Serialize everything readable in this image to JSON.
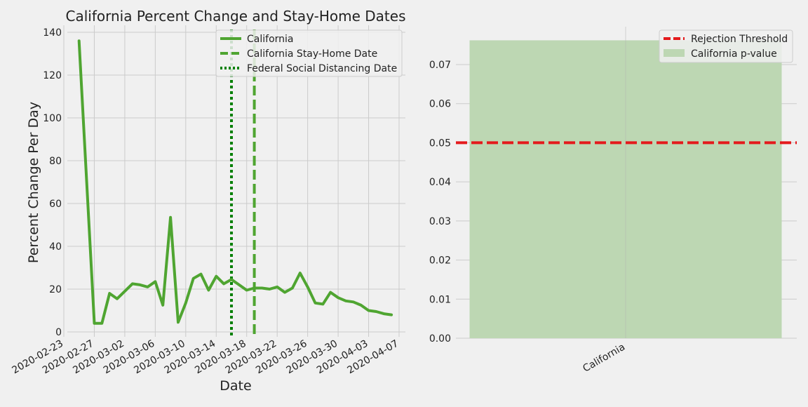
{
  "chart_data": [
    {
      "type": "line",
      "title": "California Percent Change and Stay-Home Dates",
      "xlabel": "Date",
      "ylabel": "Percent Change Per Day",
      "ylim": [
        -5,
        142
      ],
      "grid": true,
      "legend_position": "top-right",
      "x_tick_labels": [
        "2020-02-23",
        "2020-02-27",
        "2020-03-02",
        "2020-03-06",
        "2020-03-10",
        "2020-03-14",
        "2020-03-18",
        "2020-03-22",
        "2020-03-26",
        "2020-03-30",
        "2020-04-03",
        "2020-04-07"
      ],
      "y_ticks": [
        0,
        20,
        40,
        60,
        80,
        100,
        120,
        140
      ],
      "series": [
        {
          "name": "California",
          "color": "#4fa531",
          "x": [
            "2020-02-25",
            "2020-02-26",
            "2020-02-27",
            "2020-02-28",
            "2020-02-29",
            "2020-03-01",
            "2020-03-02",
            "2020-03-03",
            "2020-03-04",
            "2020-03-05",
            "2020-03-06",
            "2020-03-07",
            "2020-03-08",
            "2020-03-09",
            "2020-03-10",
            "2020-03-11",
            "2020-03-12",
            "2020-03-13",
            "2020-03-14",
            "2020-03-15",
            "2020-03-16",
            "2020-03-17",
            "2020-03-18",
            "2020-03-19",
            "2020-03-20",
            "2020-03-21",
            "2020-03-22",
            "2020-03-23",
            "2020-03-24",
            "2020-03-25",
            "2020-03-26",
            "2020-03-27",
            "2020-03-28",
            "2020-03-29",
            "2020-03-30",
            "2020-03-31",
            "2020-04-01",
            "2020-04-02",
            "2020-04-03",
            "2020-04-04",
            "2020-04-05",
            "2020-04-06"
          ],
          "values": [
            136,
            70,
            4,
            4,
            18,
            15.5,
            19,
            22.5,
            22,
            21,
            23.5,
            12.5,
            53.5,
            4.5,
            13.5,
            25,
            27,
            19.5,
            26,
            22.5,
            24.5,
            22,
            19.5,
            20.5,
            20.5,
            20,
            21,
            18.5,
            20.5,
            27.5,
            21,
            13.5,
            13,
            18.5,
            16,
            14.5,
            14,
            12.5,
            10,
            9.5,
            8.5,
            8
          ]
        }
      ],
      "vertical_lines": [
        {
          "name": "California Stay-Home Date",
          "date": "2020-03-19",
          "style": "dashed",
          "color": "#4fa531"
        },
        {
          "name": "Federal Social Distancing Date",
          "date": "2020-03-16",
          "style": "dotted",
          "color": "#008000"
        }
      ]
    },
    {
      "type": "bar",
      "categories": [
        "California"
      ],
      "series": [
        {
          "name": "California p-value",
          "values": [
            0.0762
          ],
          "color": "#bdd7b3"
        }
      ],
      "reference_lines": [
        {
          "name": "Rejection Threshold",
          "value": 0.05,
          "style": "dashed",
          "color": "#e41a1c"
        }
      ],
      "ylim": [
        0,
        0.08
      ],
      "y_ticks": [
        "0.00",
        "0.01",
        "0.02",
        "0.03",
        "0.04",
        "0.05",
        "0.06",
        "0.07"
      ],
      "grid": true,
      "legend_position": "top-right"
    }
  ],
  "legend_left": [
    "California",
    "California Stay-Home Date",
    "Federal Social Distancing Date"
  ],
  "legend_right": [
    "Rejection Threshold",
    "California p-value"
  ]
}
